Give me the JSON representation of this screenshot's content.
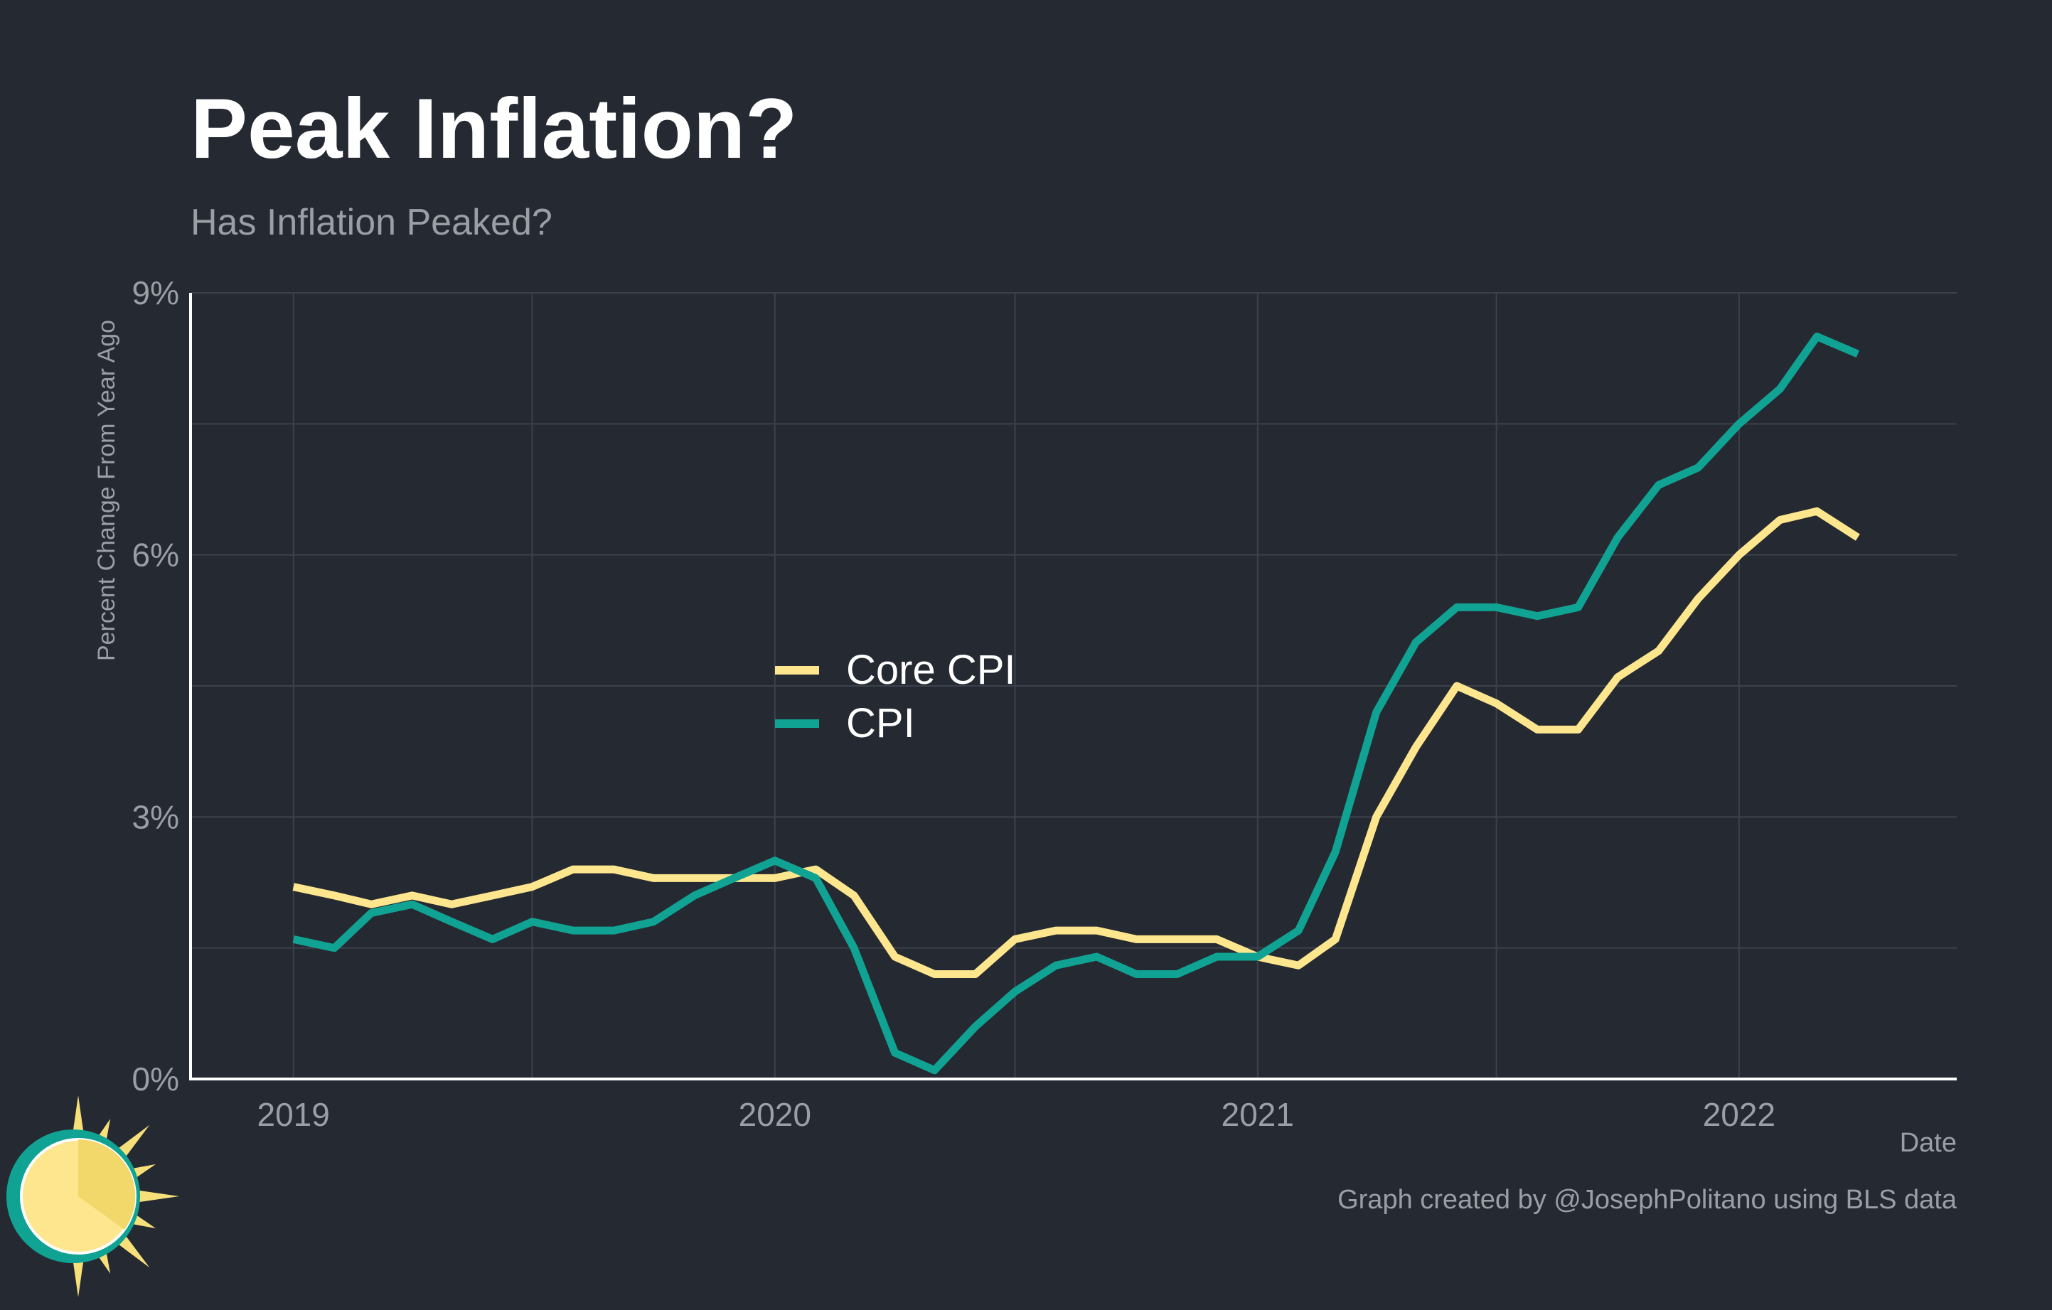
{
  "colors": {
    "background": "#252931",
    "grid": "#3c414b",
    "axis": "#ffffff",
    "title": "#ffffff",
    "muted_text": "#9a9ea5",
    "core_cpi": "#fde68e",
    "cpi": "#10a393",
    "logo_sun": "#f7e07a",
    "logo_ring": "#10a393"
  },
  "chart_data": {
    "type": "line",
    "title": "Peak Inflation?",
    "subtitle": "Has Inflation Peaked?",
    "xlabel": "Date",
    "ylabel": "Percent Change From Year Ago",
    "caption": "Graph created by @JosephPolitano using BLS data",
    "xlim": [
      "2018-10-15",
      "2022-06-15"
    ],
    "ylim": [
      0,
      9
    ],
    "y_ticks": [
      0,
      3,
      6,
      9
    ],
    "y_tick_labels": [
      "0%",
      "3%",
      "6%",
      "9%"
    ],
    "x_ticks": [
      "2019-01-01",
      "2020-01-01",
      "2021-01-01",
      "2022-01-01"
    ],
    "x_tick_labels": [
      "2019",
      "2020",
      "2021",
      "2022"
    ],
    "grid": true,
    "legend_position": "center",
    "x": [
      "2019-01-01",
      "2019-02-01",
      "2019-03-01",
      "2019-04-01",
      "2019-05-01",
      "2019-06-01",
      "2019-07-01",
      "2019-08-01",
      "2019-09-01",
      "2019-10-01",
      "2019-11-01",
      "2019-12-01",
      "2020-01-01",
      "2020-02-01",
      "2020-03-01",
      "2020-04-01",
      "2020-05-01",
      "2020-06-01",
      "2020-07-01",
      "2020-08-01",
      "2020-09-01",
      "2020-10-01",
      "2020-11-01",
      "2020-12-01",
      "2021-01-01",
      "2021-02-01",
      "2021-03-01",
      "2021-04-01",
      "2021-05-01",
      "2021-06-01",
      "2021-07-01",
      "2021-08-01",
      "2021-09-01",
      "2021-10-01",
      "2021-11-01",
      "2021-12-01",
      "2022-01-01",
      "2022-02-01",
      "2022-03-01",
      "2022-04-01"
    ],
    "series": [
      {
        "name": "Core CPI",
        "color": "#fde68e",
        "values": [
          2.2,
          2.1,
          2.0,
          2.1,
          2.0,
          2.1,
          2.2,
          2.4,
          2.4,
          2.3,
          2.3,
          2.3,
          2.3,
          2.4,
          2.1,
          1.4,
          1.2,
          1.2,
          1.6,
          1.7,
          1.7,
          1.6,
          1.6,
          1.6,
          1.4,
          1.3,
          1.6,
          3.0,
          3.8,
          4.5,
          4.3,
          4.0,
          4.0,
          4.6,
          4.9,
          5.5,
          6.0,
          6.4,
          6.5,
          6.2
        ]
      },
      {
        "name": "CPI",
        "color": "#10a393",
        "values": [
          1.6,
          1.5,
          1.9,
          2.0,
          1.8,
          1.6,
          1.8,
          1.7,
          1.7,
          1.8,
          2.1,
          2.3,
          2.5,
          2.3,
          1.5,
          0.3,
          0.1,
          0.6,
          1.0,
          1.3,
          1.4,
          1.2,
          1.2,
          1.4,
          1.4,
          1.7,
          2.6,
          4.2,
          5.0,
          5.4,
          5.4,
          5.3,
          5.4,
          6.2,
          6.8,
          7.0,
          7.5,
          7.9,
          8.5,
          8.3
        ]
      }
    ]
  }
}
